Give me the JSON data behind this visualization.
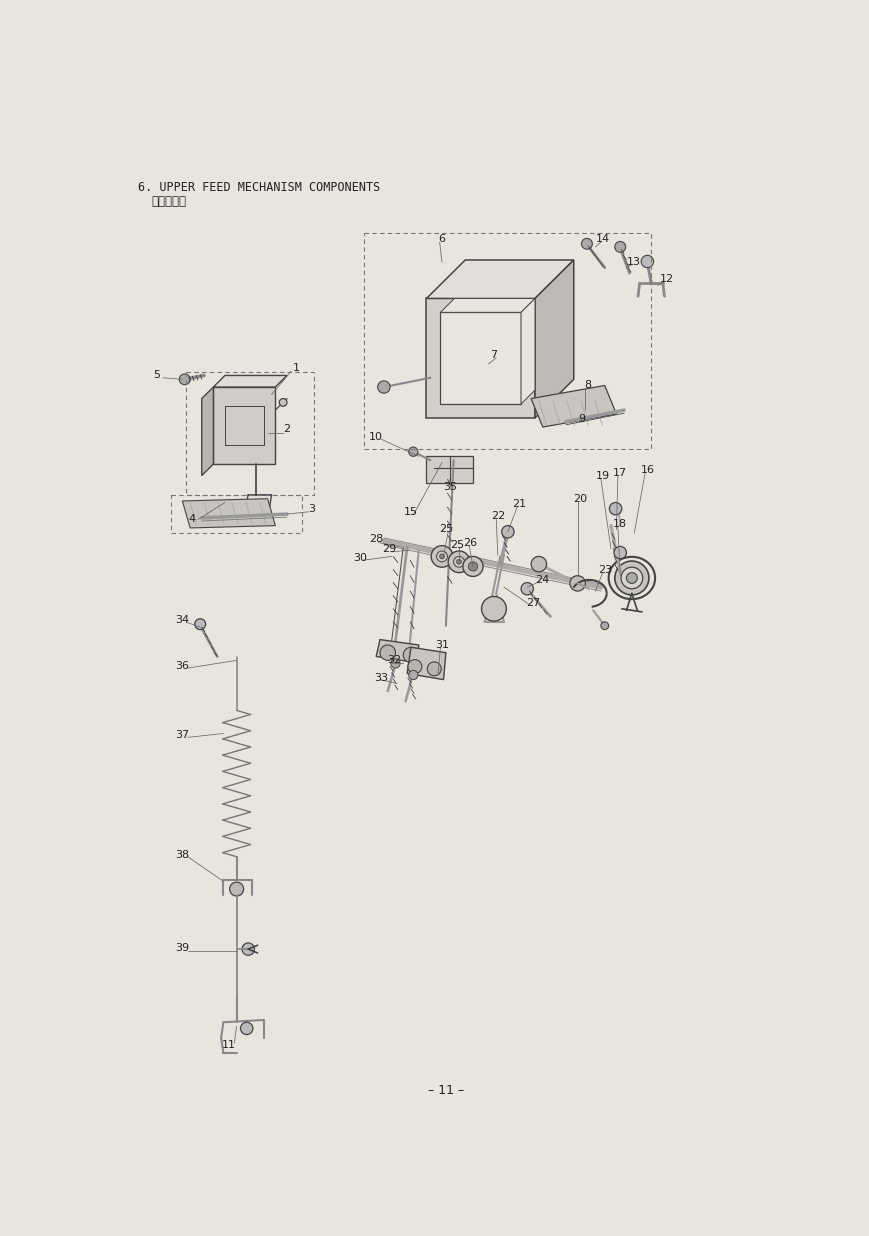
{
  "title": "6. UPPER FEED MECHANISM COMPONENTS",
  "subtitle": "上送り関係",
  "page_number": "– 11 –",
  "bg_color": "#e8e5df",
  "line_color": "#444444",
  "text_color": "#222222",
  "fig_width": 8.7,
  "fig_height": 12.36,
  "dpi": 100
}
